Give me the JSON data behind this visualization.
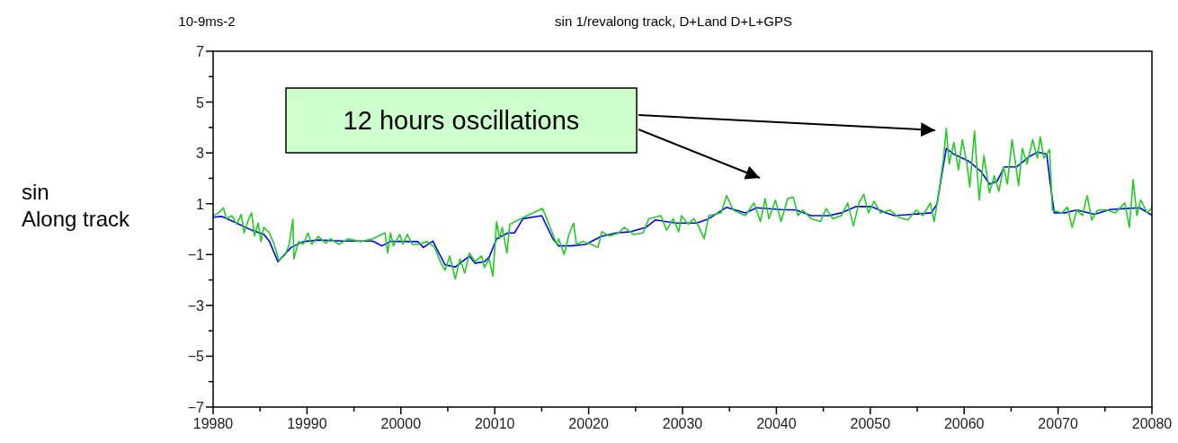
{
  "chart_data": {
    "type": "line",
    "title": "sin 1/revalong track, D+Land D+L+GPS",
    "ylabel": "sin\nAlong track",
    "annotations": [
      "10-9ms-2",
      "12 hours oscillations"
    ],
    "xlim": [
      19980,
      20080
    ],
    "ylim": [
      -7,
      7
    ],
    "xticks": [
      19980,
      {
        "value": 19985,
        "label": null
      },
      19990,
      {
        "value": 19995,
        "label": null
      },
      20000,
      {
        "value": 20005,
        "label": null
      },
      20010,
      {
        "value": 20015,
        "label": null
      },
      20020,
      {
        "value": 20025,
        "label": null
      },
      20030,
      {
        "value": 20035,
        "label": null
      },
      20040,
      {
        "value": 20045,
        "label": null
      },
      20050,
      {
        "value": 20055,
        "label": null
      },
      20060,
      {
        "value": 20065,
        "label": null
      },
      20070,
      {
        "value": 20075,
        "label": null
      },
      20080
    ],
    "yticks": [
      {
        "value": -7,
        "label": "−7"
      },
      {
        "value": -6,
        "label": null
      },
      {
        "value": -5,
        "label": "−5"
      },
      {
        "value": -4,
        "label": null
      },
      {
        "value": -3,
        "label": "−3"
      },
      {
        "value": -2,
        "label": null
      },
      {
        "value": -1,
        "label": "−1"
      },
      {
        "value": 0,
        "label": null
      },
      1,
      {
        "value": 2,
        "label": null
      },
      3,
      {
        "value": 4,
        "label": null
      },
      5,
      {
        "value": 6,
        "label": null
      },
      7
    ],
    "grid": false,
    "marker": "none",
    "line_style": "solid",
    "series": [
      {
        "color": "#0000ff",
        "x": [
          19980,
          19980.9,
          19982.5,
          19984.1,
          19985.4,
          19986,
          19986.9,
          19988.3,
          19989.6,
          19991.2,
          19993.8,
          19997,
          19998,
          19998.9,
          20001.8,
          20002.4,
          20003.4,
          20004.7,
          20005.8,
          20007.3,
          20007.9,
          20008.9,
          20009.4,
          20010.2,
          20011.4,
          20012.1,
          20013,
          20015,
          20016.2,
          20016.8,
          20018.1,
          20019.7,
          20021.3,
          20022.9,
          20024.5,
          20026.1,
          20027.1,
          20029.3,
          20031.5,
          20032.8,
          20034.7,
          20036.7,
          20037.9,
          20040.5,
          20042.1,
          20043.7,
          20045.6,
          20046.9,
          20048.5,
          20050.1,
          20051.7,
          20052.6,
          20056.5,
          20057.1,
          20057.6,
          20058.1,
          20058.9,
          20060.5,
          20061.8,
          20062.7,
          20063.5,
          20064.3,
          20065.6,
          20066.9,
          20067.8,
          20068.8,
          20069.1,
          20069.6,
          20070.7,
          20072,
          20073.9,
          20075.5,
          20077.1,
          20078.7,
          20080
        ],
        "values": [
          0.47,
          0.5,
          0.24,
          -0.04,
          -0.2,
          -0.48,
          -1.28,
          -0.72,
          -0.49,
          -0.43,
          -0.47,
          -0.47,
          -0.66,
          -0.48,
          -0.49,
          -0.72,
          -0.47,
          -1.4,
          -1.49,
          -1.06,
          -1.34,
          -1.28,
          -1.11,
          -0.38,
          -0.15,
          -0.15,
          0.41,
          0.53,
          -0.38,
          -0.66,
          -0.66,
          -0.6,
          -0.29,
          -0.15,
          -0.1,
          0.07,
          0.36,
          0.24,
          0.24,
          0.41,
          0.86,
          0.64,
          0.84,
          0.77,
          0.75,
          0.53,
          0.53,
          0.64,
          0.89,
          0.89,
          0.64,
          0.53,
          0.64,
          0.98,
          2.1,
          3.18,
          2.95,
          2.67,
          2.27,
          1.77,
          1.88,
          2.45,
          2.45,
          2.84,
          3.03,
          2.95,
          1.99,
          0.64,
          0.64,
          0.75,
          0.58,
          0.77,
          0.81,
          0.84,
          0.55
        ]
      },
      {
        "color": "#22cc22",
        "x": [
          19980,
          19980.6,
          19981.1,
          19981.4,
          19982,
          19982.5,
          19983,
          19983.3,
          19983.8,
          19984.1,
          19984.4,
          19984.8,
          19985.1,
          19985.4,
          19986,
          19986.5,
          19987,
          19987.7,
          19988.1,
          19988.5,
          19988.6,
          19989.1,
          19989.6,
          19990.1,
          19990.5,
          19991.2,
          19992,
          19992.5,
          19993.4,
          19994.4,
          19995.7,
          19997,
          19998.3,
          19998.6,
          19998.9,
          19999.2,
          19999.9,
          20000.2,
          20000.7,
          20001.2,
          20001.8,
          20002.8,
          20003.6,
          20004.2,
          20004.7,
          20005.2,
          20005.8,
          20006.3,
          20006.8,
          20007.3,
          20007.9,
          20008.6,
          20008.9,
          20009.4,
          20009.8,
          20010.2,
          20010.5,
          20010.8,
          20011.3,
          20011.6,
          20013.1,
          20015.1,
          20015.9,
          20016.6,
          20016.8,
          20017.4,
          20017.9,
          20018.4,
          20018.7,
          20019.4,
          20020.3,
          20021,
          20021.4,
          20022.2,
          20023.2,
          20023.8,
          20024.8,
          20025.8,
          20026.4,
          20027.7,
          20028.3,
          20029,
          20029.6,
          20029.9,
          20030.6,
          20031.2,
          20031.7,
          20032.3,
          20032.8,
          20034.1,
          20034.7,
          20035.4,
          20036.7,
          20037.6,
          20038.3,
          20038.8,
          20039.2,
          20039.9,
          20040.5,
          20041.2,
          20041.8,
          20042.3,
          20042.8,
          20043.7,
          20044.7,
          20045.3,
          20046,
          20046.9,
          20047.6,
          20048.2,
          20048.8,
          20049.3,
          20049.8,
          20050.4,
          20051.1,
          20052.1,
          20053,
          20054,
          20054.9,
          20055.6,
          20056.4,
          20056.8,
          20057.3,
          20057.8,
          20058.1,
          20058.4,
          20058.9,
          20059.4,
          20059.8,
          20060.3,
          20060.6,
          20061.1,
          20061.6,
          20062.1,
          20062.7,
          20063.2,
          20063.7,
          20064.2,
          20064.6,
          20065.1,
          20065.8,
          20066.2,
          20066.7,
          20067.3,
          20067.8,
          20068.1,
          20068.5,
          20069.1,
          20069.4,
          20070.4,
          20071,
          20071.5,
          20072,
          20072.6,
          20073.1,
          20073.6,
          20074.2,
          20075.2,
          20076.1,
          20077.1,
          20077.6,
          20078,
          20078.4,
          20078.8,
          20079.5,
          20080
        ],
        "values": [
          0.53,
          0.64,
          0.84,
          0.41,
          0.53,
          0.19,
          0.58,
          -0.15,
          0.41,
          0.64,
          -0.26,
          0.24,
          -0.49,
          0.07,
          -0.15,
          -0.6,
          -1.23,
          -1,
          -0.6,
          0.39,
          -1.17,
          -0.49,
          -0.6,
          -0.15,
          -0.6,
          -0.29,
          -0.55,
          -0.38,
          -0.6,
          -0.38,
          -0.49,
          -0.38,
          -0.15,
          -0.94,
          -0.15,
          -0.66,
          -0.21,
          -0.6,
          -0.21,
          -0.6,
          -0.6,
          -0.49,
          -0.72,
          -1.28,
          -1.62,
          -1.06,
          -1.96,
          -1.17,
          -1.73,
          -0.94,
          -1.28,
          -1.06,
          -1.51,
          -1.17,
          -1.85,
          0.3,
          -0.38,
          0.07,
          -0.94,
          0.19,
          0.47,
          0.81,
          0.07,
          -0.6,
          -0.38,
          -1,
          -0.21,
          0.24,
          -0.6,
          -0.49,
          -0.6,
          -0.72,
          -0.1,
          -0.27,
          -0.15,
          0.07,
          -0.21,
          -0.15,
          0.41,
          0.53,
          -0.04,
          0.41,
          -0.1,
          0.53,
          0.19,
          0.41,
          0.13,
          -0.38,
          0.53,
          0.64,
          1.32,
          0.75,
          0.53,
          1.03,
          0.3,
          1.2,
          0.41,
          1.14,
          0.3,
          1.2,
          1.26,
          0.53,
          0.75,
          0.41,
          0.3,
          0.81,
          0.41,
          0.53,
          1.03,
          0.13,
          1.03,
          1.37,
          0.64,
          1.09,
          0.64,
          0.75,
          0.47,
          0.36,
          0.75,
          0.53,
          1.03,
          0.3,
          1.43,
          2.79,
          3.97,
          2.56,
          3.41,
          2.33,
          3.52,
          2.56,
          1.66,
          3.86,
          1.15,
          2.9,
          1.43,
          2.1,
          1.49,
          2.45,
          1.77,
          3.52,
          1.71,
          3.18,
          2.56,
          3.52,
          2.79,
          3.63,
          2.79,
          3.13,
          0.75,
          0.64,
          0.86,
          0.07,
          0.75,
          0.53,
          1.32,
          0.36,
          0.75,
          0.75,
          0.64,
          1.03,
          0.07,
          1.94,
          0.53,
          1.15,
          0.64,
          0.86
        ]
      }
    ]
  }
}
